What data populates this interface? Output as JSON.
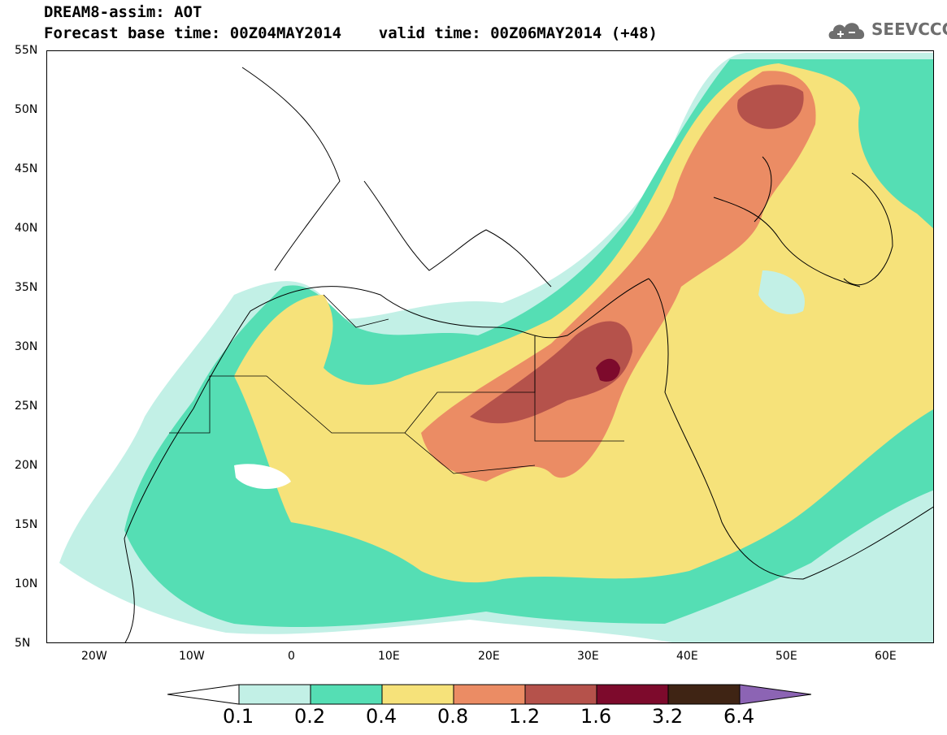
{
  "title": {
    "line1": "DREAM8-assim: AOT",
    "line2": "Forecast base time: 00Z04MAY2014    valid time: 00Z06MAY2014 (+48)"
  },
  "logo": {
    "text": "SEEVCCC",
    "icon": "cloud-icon"
  },
  "map": {
    "lon_range": [
      -25,
      65
    ],
    "lat_range": [
      5,
      55
    ],
    "lat_ticks": [
      "55N",
      "50N",
      "45N",
      "40N",
      "35N",
      "30N",
      "25N",
      "20N",
      "15N",
      "10N",
      "5N"
    ],
    "lon_ticks": [
      "20W",
      "10W",
      "0",
      "10E",
      "20E",
      "30E",
      "40E",
      "50E",
      "60E"
    ]
  },
  "colorbar": {
    "colors": [
      "#c2f0e6",
      "#55deb4",
      "#f6e27a",
      "#eb8c64",
      "#b5524b",
      "#7d0a2c",
      "#3f2414",
      "#8c64b4"
    ],
    "labels": [
      "0.1",
      "0.2",
      "0.4",
      "0.8",
      "1.2",
      "1.6",
      "3.2",
      "6.4"
    ]
  }
}
